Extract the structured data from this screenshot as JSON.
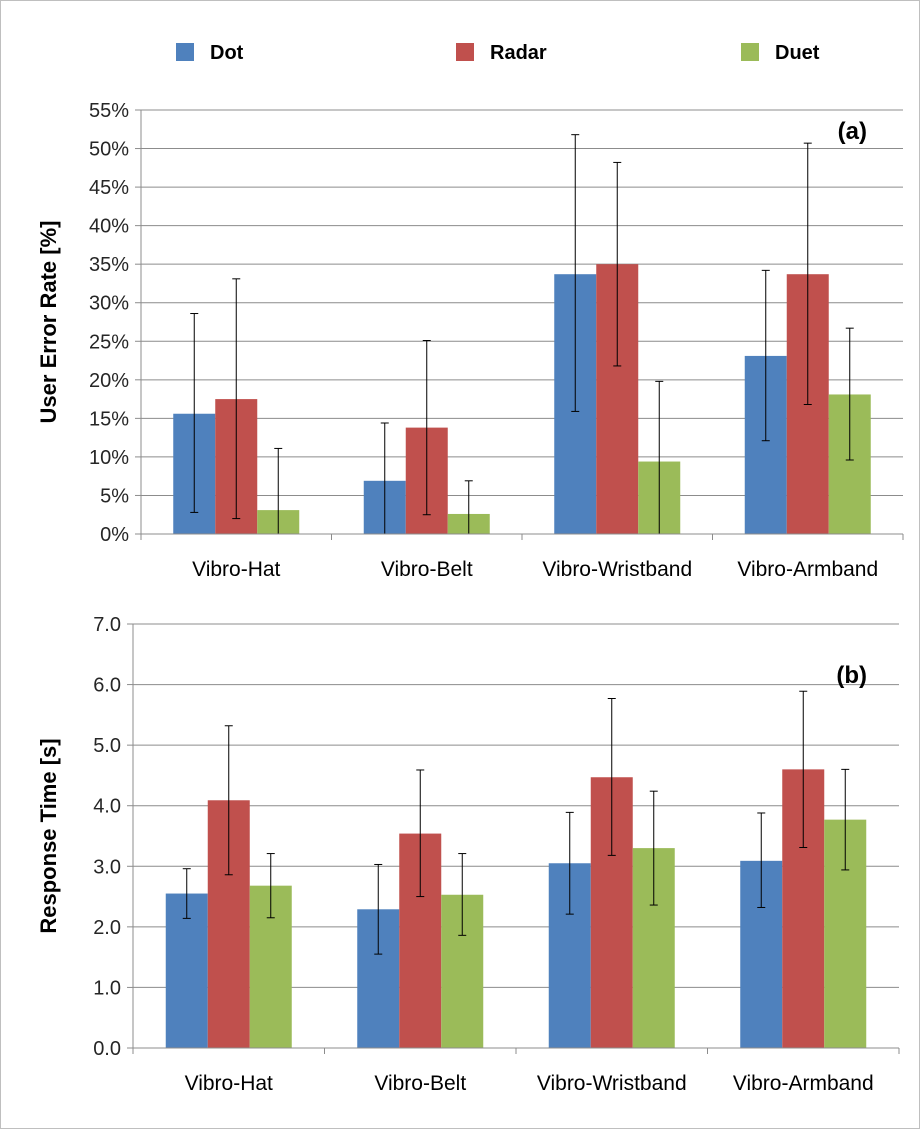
{
  "legend": [
    {
      "name": "Dot",
      "color": "#4f81bd"
    },
    {
      "name": "Radar",
      "color": "#c0504d"
    },
    {
      "name": "Duet",
      "color": "#9bbb59"
    }
  ],
  "chart_data": [
    {
      "type": "bar",
      "panel_label": "(a)",
      "ylabel": "User Error Rate [%]",
      "categories": [
        "Vibro-Hat",
        "Vibro-Belt",
        "Vibro-Wristband",
        "Vibro-Armband"
      ],
      "ylim": [
        0,
        55
      ],
      "yticks": [
        0,
        5,
        10,
        15,
        20,
        25,
        30,
        35,
        40,
        45,
        50,
        55
      ],
      "ytick_labels": [
        "0%",
        "5%",
        "10%",
        "15%",
        "20%",
        "25%",
        "30%",
        "35%",
        "40%",
        "45%",
        "50%",
        "55%"
      ],
      "grid": true,
      "series": [
        {
          "name": "Dot",
          "values": [
            15.6,
            6.9,
            33.7,
            23.1
          ],
          "err_low": [
            2.8,
            0,
            15.9,
            12.1
          ],
          "err_high": [
            28.6,
            14.4,
            51.8,
            34.2
          ]
        },
        {
          "name": "Radar",
          "values": [
            17.5,
            13.8,
            35.0,
            33.7
          ],
          "err_low": [
            2.0,
            2.5,
            21.8,
            16.8
          ],
          "err_high": [
            33.1,
            25.1,
            48.2,
            50.7
          ]
        },
        {
          "name": "Duet",
          "values": [
            3.1,
            2.6,
            9.4,
            18.1
          ],
          "err_low": [
            0,
            0,
            0,
            9.6
          ],
          "err_high": [
            11.1,
            6.9,
            19.8,
            26.7
          ]
        }
      ]
    },
    {
      "type": "bar",
      "panel_label": "(b)",
      "ylabel": "Response Time [s]",
      "categories": [
        "Vibro-Hat",
        "Vibro-Belt",
        "Vibro-Wristband",
        "Vibro-Armband"
      ],
      "ylim": [
        0,
        7
      ],
      "yticks": [
        0,
        1,
        2,
        3,
        4,
        5,
        6,
        7
      ],
      "ytick_labels": [
        "0.0",
        "1.0",
        "2.0",
        "3.0",
        "4.0",
        "5.0",
        "6.0",
        "7.0"
      ],
      "grid": true,
      "series": [
        {
          "name": "Dot",
          "values": [
            2.55,
            2.29,
            3.05,
            3.09
          ],
          "err_low": [
            2.14,
            1.55,
            2.21,
            2.32
          ],
          "err_high": [
            2.96,
            3.03,
            3.89,
            3.88
          ]
        },
        {
          "name": "Radar",
          "values": [
            4.09,
            3.54,
            4.47,
            4.6
          ],
          "err_low": [
            2.86,
            2.5,
            3.18,
            3.31
          ],
          "err_high": [
            5.32,
            4.59,
            5.77,
            5.89
          ]
        },
        {
          "name": "Duet",
          "values": [
            2.68,
            2.53,
            3.3,
            3.77
          ],
          "err_low": [
            2.15,
            1.86,
            2.36,
            2.94
          ],
          "err_high": [
            3.21,
            3.21,
            4.24,
            4.6
          ]
        }
      ]
    }
  ]
}
